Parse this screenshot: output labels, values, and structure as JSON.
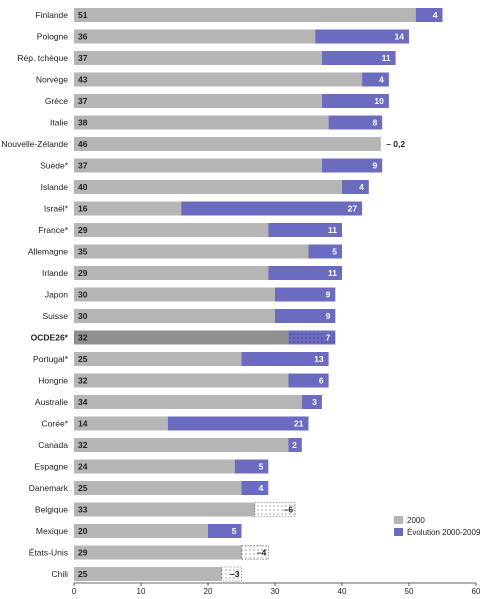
{
  "chart_data": {
    "type": "bar",
    "orientation": "horizontal",
    "stacked": true,
    "title": "",
    "xlabel": "",
    "ylabel": "",
    "xlim": [
      0,
      60
    ],
    "xticks": [
      0,
      10,
      20,
      30,
      40,
      50,
      60
    ],
    "grid": false,
    "legend_position": "bottom-right",
    "colors": {
      "base": "#b5b5b5",
      "base_highlight": "#8f8f8f",
      "increase": "#6b6bc0",
      "decrease_fill": "#ffffff",
      "decrease_stroke": "#555555",
      "value_label_base": "#222222",
      "value_label_increase": "#ffffff",
      "category_label": "#222222"
    },
    "series": [
      {
        "name": "2000",
        "role": "base"
      },
      {
        "name": "Évolution 2000-2009",
        "role": "change"
      }
    ],
    "highlight_category": "OCDE26*",
    "rows": [
      {
        "country": "Finlande",
        "base": 51,
        "change": 4,
        "change_label": "4"
      },
      {
        "country": "Pologne",
        "base": 36,
        "change": 14,
        "change_label": "14"
      },
      {
        "country": "Rép. tchèque",
        "base": 37,
        "change": 11,
        "change_label": "11"
      },
      {
        "country": "Norvège",
        "base": 43,
        "change": 4,
        "change_label": "4"
      },
      {
        "country": "Grèce",
        "base": 37,
        "change": 10,
        "change_label": "10"
      },
      {
        "country": "Italie",
        "base": 38,
        "change": 8,
        "change_label": "8"
      },
      {
        "country": "Nouvelle-Zélande",
        "base": 46,
        "change": -0.2,
        "change_label": "– 0,2"
      },
      {
        "country": "Suède*",
        "base": 37,
        "change": 9,
        "change_label": "9"
      },
      {
        "country": "Islande",
        "base": 40,
        "change": 4,
        "change_label": "4"
      },
      {
        "country": "Israël*",
        "base": 16,
        "change": 27,
        "change_label": "27"
      },
      {
        "country": "France*",
        "base": 29,
        "change": 11,
        "change_label": "11"
      },
      {
        "country": "Allemagne",
        "base": 35,
        "change": 5,
        "change_label": "5"
      },
      {
        "country": "Irlande",
        "base": 29,
        "change": 11,
        "change_label": "11"
      },
      {
        "country": "Japon",
        "base": 30,
        "change": 9,
        "change_label": "9"
      },
      {
        "country": "Suisse",
        "base": 30,
        "change": 9,
        "change_label": "9"
      },
      {
        "country": "OCDE26*",
        "base": 32,
        "change": 7,
        "change_label": "7"
      },
      {
        "country": "Portugal*",
        "base": 25,
        "change": 13,
        "change_label": "13"
      },
      {
        "country": "Hongrie",
        "base": 32,
        "change": 6,
        "change_label": "6"
      },
      {
        "country": "Australie",
        "base": 34,
        "change": 3,
        "change_label": "3"
      },
      {
        "country": "Corée*",
        "base": 14,
        "change": 21,
        "change_label": "21"
      },
      {
        "country": "Canada",
        "base": 32,
        "change": 2,
        "change_label": "2"
      },
      {
        "country": "Espagne",
        "base": 24,
        "change": 5,
        "change_label": "5"
      },
      {
        "country": "Danemark",
        "base": 25,
        "change": 4,
        "change_label": "4"
      },
      {
        "country": "Belgique",
        "base": 33,
        "change": -6,
        "change_label": "–6"
      },
      {
        "country": "Mexique",
        "base": 20,
        "change": 5,
        "change_label": "5"
      },
      {
        "country": "États-Unis",
        "base": 29,
        "change": -4,
        "change_label": "–4"
      },
      {
        "country": "Chili",
        "base": 25,
        "change": -3,
        "change_label": "–3"
      }
    ]
  }
}
